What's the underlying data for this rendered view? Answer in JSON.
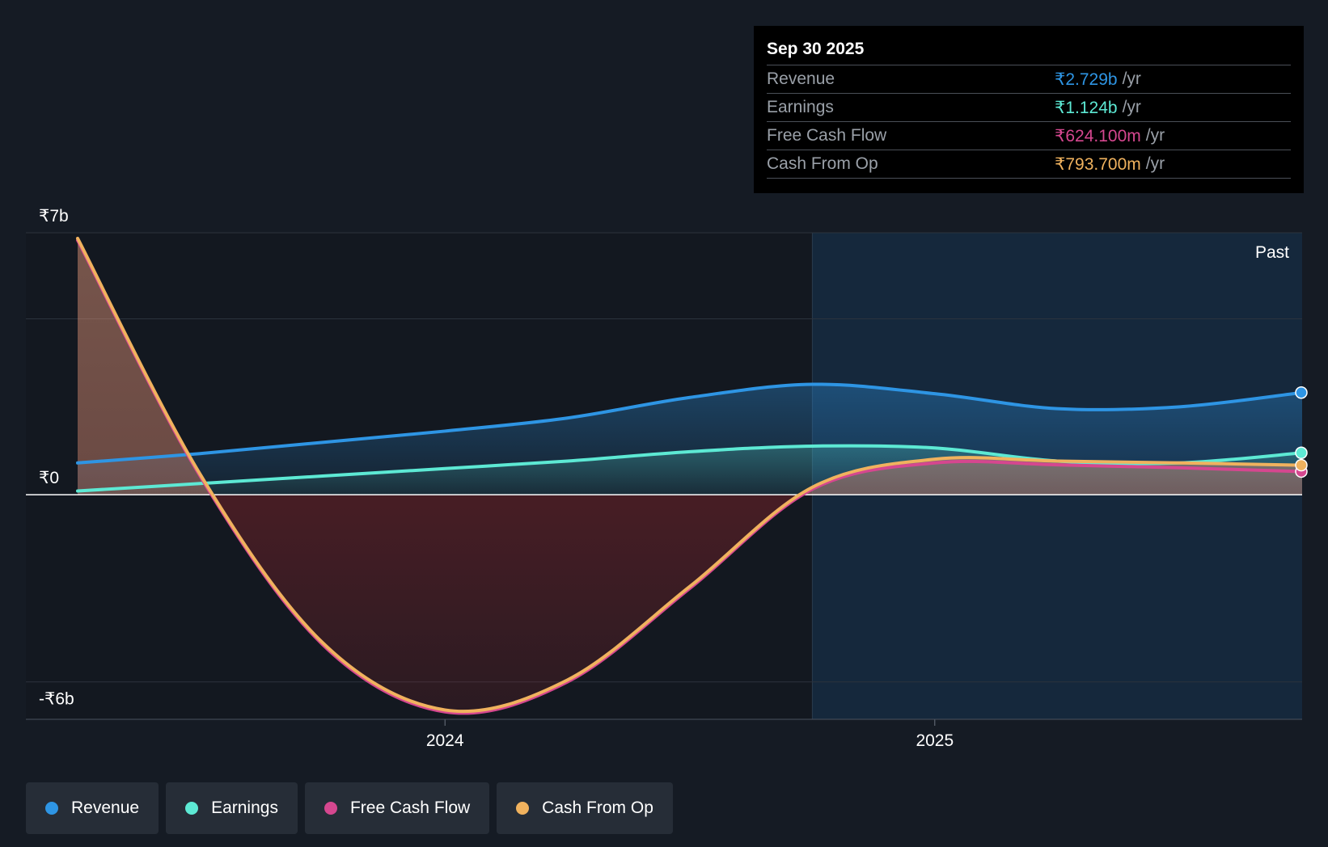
{
  "tooltip": {
    "date": "Sep 30 2025",
    "rows": [
      {
        "label": "Revenue",
        "value": "₹2.729b",
        "unit": "/yr",
        "color": "#2e95e4"
      },
      {
        "label": "Earnings",
        "value": "₹1.124b",
        "unit": "/yr",
        "color": "#5de9d4"
      },
      {
        "label": "Free Cash Flow",
        "value": "₹624.100m",
        "unit": "/yr",
        "color": "#d5478f"
      },
      {
        "label": "Cash From Op",
        "value": "₹793.700m",
        "unit": "/yr",
        "color": "#f0b25e"
      }
    ]
  },
  "legend": [
    {
      "label": "Revenue",
      "color": "#2e95e4"
    },
    {
      "label": "Earnings",
      "color": "#5de9d4"
    },
    {
      "label": "Free Cash Flow",
      "color": "#d5478f"
    },
    {
      "label": "Cash From Op",
      "color": "#f0b25e"
    }
  ],
  "chart_data": {
    "type": "line",
    "title": "",
    "xlabel": "",
    "ylabel": "",
    "ylim": [
      -6,
      7
    ],
    "y_tick_labels": [
      "₹7b",
      "₹0",
      "-₹6b"
    ],
    "y_tick_values": [
      7,
      0,
      -6
    ],
    "x_tick_labels": [
      "2024",
      "2025"
    ],
    "x_tick_values": [
      2024.0,
      2025.0
    ],
    "xlim": [
      2023.25,
      2025.75
    ],
    "past_label": "Past",
    "past_start": 2024.75,
    "x": [
      2023.25,
      2023.5,
      2023.75,
      2024.0,
      2024.25,
      2024.5,
      2024.75,
      2025.0,
      2025.25,
      2025.5,
      2025.75
    ],
    "series": [
      {
        "name": "Revenue",
        "color": "#2e95e4",
        "values": [
          0.85,
          1.1,
          1.4,
          1.7,
          2.05,
          2.6,
          2.95,
          2.7,
          2.3,
          2.35,
          2.73
        ]
      },
      {
        "name": "Earnings",
        "color": "#5de9d4",
        "values": [
          0.1,
          0.3,
          0.5,
          0.7,
          0.9,
          1.15,
          1.3,
          1.25,
          0.9,
          0.85,
          1.12
        ]
      },
      {
        "name": "Free Cash Flow",
        "color": "#d5478f",
        "values": [
          6.8,
          0.5,
          -4.0,
          -5.8,
          -5.0,
          -2.5,
          0.15,
          0.85,
          0.8,
          0.72,
          0.62
        ]
      },
      {
        "name": "Cash From Op",
        "color": "#f0b25e",
        "values": [
          6.85,
          0.55,
          -3.95,
          -5.75,
          -4.95,
          -2.45,
          0.2,
          0.95,
          0.9,
          0.85,
          0.79
        ]
      }
    ]
  }
}
